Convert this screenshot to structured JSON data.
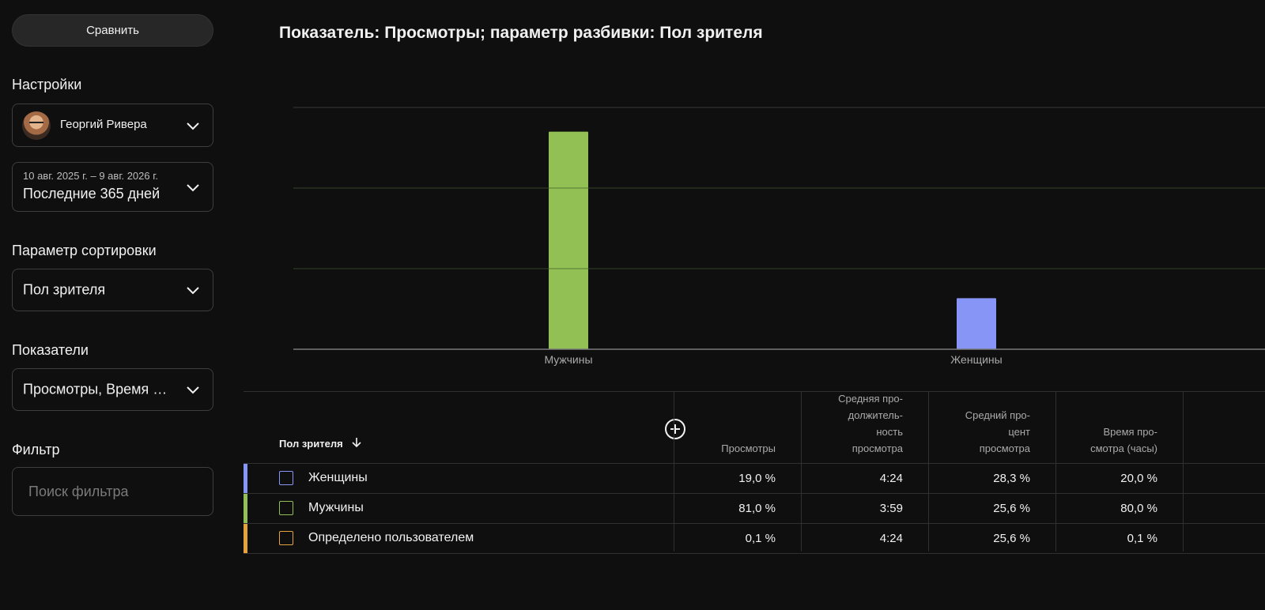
{
  "sidebar": {
    "compare_label": "Сравнить",
    "settings_label": "Настройки",
    "account_name": "Георгий Ривера",
    "date_range_small": "10 авг. 2025 г. – 9 авг. 2026 г.",
    "date_range_label": "Последние 365 дней",
    "sort_label": "Параметр сортировки",
    "sort_value": "Пол зрителя",
    "metrics_label": "Показатели",
    "metrics_value": "Просмотры, Время просмотра (часы)",
    "filter_label": "Фильтр",
    "filter_placeholder": "Поиск фильтра"
  },
  "chart_title": "Показатель: Просмотры; параметр разбивки: Пол зрителя",
  "chart_data": {
    "type": "bar",
    "title": "Показатель: Просмотры; параметр разбивки: Пол зрителя",
    "categories": [
      "Мужчины",
      "Женщины"
    ],
    "values": [
      81.0,
      19.0
    ],
    "colors": [
      "#93c054",
      "#8795f7"
    ],
    "ylim": [
      0,
      90
    ],
    "grid": true
  },
  "table": {
    "dimension_header": "Пол зрителя",
    "columns": [
      "Просмотры",
      "Средняя про-\nдолжитель-\nность\nпросмотра",
      "Средний про-\nцент\nпросмотра",
      "Время про-\nсмотра (часы)"
    ],
    "rows": [
      {
        "label": "Женщины",
        "color": "#8795f7",
        "values": [
          "19,0 %",
          "4:24",
          "28,3 %",
          "20,0 %"
        ]
      },
      {
        "label": "Мужчины",
        "color": "#93c054",
        "values": [
          "81,0 %",
          "3:59",
          "25,6 %",
          "80,0 %"
        ]
      },
      {
        "label": "Определено пользователем",
        "color": "#e8a23c",
        "values": [
          "0,1 %",
          "4:24",
          "25,6 %",
          "0,1 %"
        ]
      }
    ]
  }
}
